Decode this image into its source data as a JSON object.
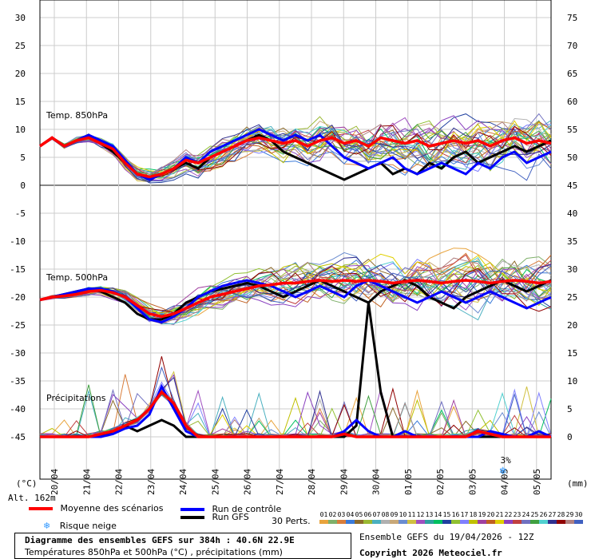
{
  "chart_data": {
    "type": "line",
    "title": "Diagramme des ensembles GEFS sur 384h : 40.6N 22.9E",
    "subtitle": "Températures 850hPa et 500hPa (°C) , précipitations (mm)",
    "panel_labels": {
      "t850": "Temp. 850hPa",
      "t500": "Temp. 500hPa",
      "precip": "Précipitations"
    },
    "left_axis": {
      "unit_label": "(°C)",
      "ticks": [
        "30",
        "25",
        "20",
        "15",
        "10",
        "5",
        "0",
        "-5",
        "-10",
        "-15",
        "-20",
        "-25",
        "-30",
        "-35",
        "-40",
        "-45"
      ],
      "ylim": [
        -45,
        30
      ]
    },
    "right_axis": {
      "unit_label": "(mm)",
      "ticks": [
        "75",
        "70",
        "65",
        "60",
        "55",
        "50",
        "45",
        "40",
        "35",
        "30",
        "25",
        "20",
        "15",
        "10",
        "5",
        "0"
      ],
      "ylim": [
        0,
        75
      ]
    },
    "x_dates": [
      "20/04",
      "21/04",
      "22/04",
      "23/04",
      "24/04",
      "25/04",
      "26/04",
      "27/04",
      "28/04",
      "29/04",
      "30/04",
      "01/05",
      "02/05",
      "03/05",
      "04/05",
      "05/05"
    ],
    "altitude": "Alt. 162m",
    "grid": true,
    "series": [
      {
        "name": "Moyenne des scénarios",
        "color": "#ff0000",
        "t850": [
          7,
          8.5,
          7,
          8,
          8.5,
          7.5,
          6.5,
          4,
          2,
          1.5,
          2,
          3,
          4.5,
          4,
          5,
          6,
          7,
          8,
          8.5,
          8,
          7.5,
          8,
          7,
          8,
          8.5,
          7.5,
          8,
          7,
          8.5,
          8,
          7.5,
          8,
          7,
          7.5,
          8,
          7.5,
          8,
          7,
          8,
          8.5,
          7.5,
          8,
          7.5
        ],
        "t500": [
          -20.5,
          -20,
          -19.8,
          -19.5,
          -19,
          -18.8,
          -19.2,
          -20,
          -21.5,
          -23,
          -23.5,
          -23,
          -22,
          -21,
          -20,
          -19.5,
          -19,
          -18.5,
          -18,
          -17.8,
          -17.5,
          -17.5,
          -17.2,
          -17,
          -17.2,
          -17,
          -17.2,
          -17,
          -17.2,
          -17.5,
          -17.2,
          -17,
          -17.2,
          -17.5,
          -17.2,
          -17,
          -17.2,
          -17.5,
          -17.2,
          -17,
          -17.2,
          -17.5,
          -17.2
        ],
        "precip": [
          0,
          0,
          0,
          0,
          0,
          0.5,
          1,
          2,
          3,
          5,
          8,
          6,
          2,
          0,
          0,
          0,
          0,
          0,
          0,
          0,
          0,
          0,
          0,
          0,
          0,
          0.5,
          0,
          0,
          0,
          0,
          0,
          0,
          0,
          0,
          0,
          0,
          1,
          0.5,
          0,
          0,
          0,
          0,
          0
        ]
      },
      {
        "name": "Run de contrôle",
        "color": "#0000ff",
        "t850": [
          7,
          8.5,
          7,
          8,
          9,
          8,
          7,
          4.5,
          2,
          1,
          2,
          3,
          5,
          4,
          6,
          7,
          8,
          9,
          10,
          9,
          8,
          9,
          8,
          9,
          7,
          5,
          4,
          3,
          4,
          5,
          3,
          2,
          3,
          4,
          3,
          2,
          4,
          3,
          5,
          6,
          4,
          5,
          6
        ],
        "t500": [
          -20.5,
          -20,
          -19.5,
          -19,
          -18.5,
          -18.5,
          -19,
          -20,
          -22,
          -24,
          -24.5,
          -23.5,
          -22,
          -20,
          -19,
          -18,
          -17.5,
          -17,
          -17.5,
          -18,
          -19,
          -20,
          -19,
          -18,
          -19,
          -20,
          -18,
          -17,
          -18,
          -19,
          -20,
          -21,
          -20,
          -19,
          -20,
          -21,
          -20,
          -19,
          -20,
          -21,
          -22,
          -21,
          -20
        ],
        "precip": [
          0,
          0,
          0,
          0,
          0,
          0,
          0.5,
          1.5,
          2,
          4,
          9,
          5,
          1,
          0,
          0,
          0,
          0,
          0,
          0,
          0,
          0,
          0,
          0,
          0,
          0,
          1,
          3,
          1,
          0,
          0,
          1,
          0,
          0,
          0,
          0,
          0,
          0,
          1,
          0.5,
          0,
          0,
          1,
          0
        ]
      },
      {
        "name": "Run GFS",
        "color": "#000000",
        "t850": [
          7,
          8.5,
          7,
          8,
          9,
          7.5,
          6,
          4,
          2,
          1,
          2,
          3,
          4,
          3,
          5,
          6,
          7,
          8,
          9,
          8,
          6,
          5,
          4,
          3,
          2,
          1,
          2,
          3,
          4,
          2,
          3,
          2,
          4,
          3,
          5,
          6,
          4,
          5,
          6,
          7,
          6,
          7,
          8
        ],
        "t500": [
          -20.5,
          -20,
          -19.5,
          -19,
          -18.5,
          -19,
          -20,
          -21,
          -23,
          -24,
          -24,
          -23,
          -21,
          -20,
          -19,
          -18.5,
          -18,
          -17.5,
          -18,
          -19,
          -20,
          -19,
          -18,
          -17,
          -18,
          -19,
          -20,
          -21,
          -19,
          -18,
          -17,
          -18,
          -20,
          -21,
          -22,
          -20,
          -19,
          -18,
          -17,
          -18,
          -19,
          -18,
          -17
        ],
        "precip": [
          0,
          0,
          0,
          0,
          0,
          0,
          1,
          2,
          1,
          2,
          3,
          2,
          0,
          0,
          0,
          0,
          0,
          0,
          0,
          0,
          0,
          0,
          0,
          0,
          0,
          0,
          2,
          24,
          8,
          0,
          0,
          0,
          0,
          0,
          0,
          0,
          0,
          0,
          0,
          0,
          0,
          0,
          0
        ]
      }
    ],
    "perturbations": {
      "label": "30 Perts.",
      "ids": [
        "01",
        "02",
        "03",
        "04",
        "05",
        "06",
        "07",
        "08",
        "09",
        "10",
        "11",
        "12",
        "13",
        "14",
        "15",
        "16",
        "17",
        "18",
        "19",
        "20",
        "21",
        "22",
        "23",
        "24",
        "25",
        "26",
        "27",
        "28",
        "29",
        "30"
      ],
      "colors": [
        "#e8a33c",
        "#7fb06a",
        "#d97d3a",
        "#3a7ad9",
        "#8c6a2a",
        "#9ab832",
        "#4ab0c0",
        "#b0b0b0",
        "#c8a878",
        "#6a8cd0",
        "#d0c040",
        "#a050c0",
        "#30a0a0",
        "#00c060",
        "#2040a0",
        "#90c030",
        "#8080ff",
        "#c0c000",
        "#a040a0",
        "#c06020",
        "#e0d000",
        "#8a40c0",
        "#c04040",
        "#7070c0",
        "#40a040",
        "#50d0d0",
        "#303090",
        "#900000",
        "#b08080",
        "#4060c0"
      ]
    },
    "snow_label": "Risque neige",
    "snow_marker": {
      "date_index": 14,
      "label": "3%"
    }
  },
  "footer": {
    "ensemble_info": "Ensemble GEFS du 19/04/2026 - 12Z",
    "copyright": "Copyright 2026 Meteociel.fr"
  }
}
